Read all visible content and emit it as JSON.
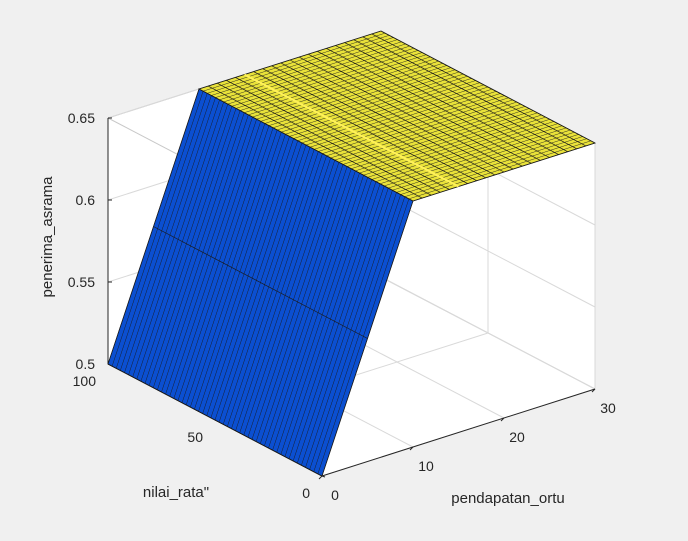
{
  "chart_data": {
    "type": "surface",
    "title": "",
    "xlabel": "pendapatan_ortu",
    "ylabel": "nilai_rata\"",
    "zlabel": "penerima_asrama",
    "xlim": [
      0,
      30
    ],
    "ylim": [
      0,
      100
    ],
    "zlim": [
      0.5,
      0.65
    ],
    "xticks": [
      "0",
      "10",
      "20",
      "30"
    ],
    "yticks": [
      "0",
      "50",
      "100"
    ],
    "zticks": [
      "0.5",
      "0.55",
      "0.6",
      "0.65"
    ],
    "grid": true,
    "surface_points": [
      {
        "pendapatan_ortu": 0,
        "nilai_rata": 0,
        "penerima_asrama": 0.5
      },
      {
        "pendapatan_ortu": 0,
        "nilai_rata": 100,
        "penerima_asrama": 0.5
      },
      {
        "pendapatan_ortu": 10,
        "nilai_rata": 0,
        "penerima_asrama": 0.65
      },
      {
        "pendapatan_ortu": 10,
        "nilai_rata": 100,
        "penerima_asrama": 0.65
      },
      {
        "pendapatan_ortu": 30,
        "nilai_rata": 0,
        "penerima_asrama": 0.65
      },
      {
        "pendapatan_ortu": 30,
        "nilai_rata": 100,
        "penerima_asrama": 0.65
      }
    ],
    "colormap": {
      "low": "#0b4fd1",
      "high": "#e9e23a"
    },
    "mesh_color": "#1a1a1a",
    "axis_color": "#262626",
    "grid_color": "#d9d9d9",
    "background": "#f0f0f0",
    "axes_background": "#ffffff"
  }
}
